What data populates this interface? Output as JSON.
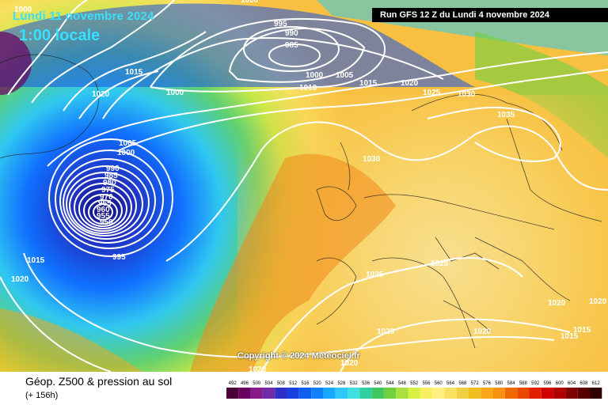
{
  "header": {
    "date": "Lundi 11 novembre 2024",
    "local_time": "1:00 locale",
    "run": "Run GFS 12 Z du Lundi 4 novembre 2024"
  },
  "footer": {
    "copyright": "Copyright © 2024 Meteociel.fr",
    "variable_title": "Géop. Z500 & pression au sol",
    "lead_time": "(+ 156h)"
  },
  "isobar_labels": [
    "1000",
    "995",
    "990",
    "985",
    "1000",
    "1005",
    "1010",
    "1015",
    "1020",
    "1025",
    "1030",
    "1015",
    "1020",
    "1000",
    "1005",
    "1000",
    "990",
    "985",
    "980",
    "975",
    "970",
    "965",
    "960",
    "955",
    "950",
    "995",
    "1015",
    "1020",
    "1030",
    "1035",
    "1025",
    "1020",
    "1020",
    "1015",
    "1015",
    "1020",
    "1020",
    "1000"
  ],
  "legend": {
    "ticks": [
      "492",
      "496",
      "500",
      "504",
      "508",
      "512",
      "516",
      "520",
      "524",
      "528",
      "532",
      "536",
      "540",
      "544",
      "548",
      "552",
      "556",
      "560",
      "564",
      "568",
      "572",
      "576",
      "580",
      "584",
      "588",
      "592",
      "596",
      "600",
      "604",
      "608",
      "612"
    ],
    "colors": [
      "#4a0038",
      "#6a0060",
      "#8a1a8a",
      "#6e2ca8",
      "#3030c8",
      "#1a40e0",
      "#1060f0",
      "#1080ff",
      "#18a8ff",
      "#30c8f8",
      "#40e0e0",
      "#30d0a0",
      "#40c860",
      "#70d040",
      "#a8e040",
      "#d8f040",
      "#f8f060",
      "#fff080",
      "#f8e060",
      "#f0d040",
      "#f0c020",
      "#f8a818",
      "#f89010",
      "#f06800",
      "#e84800",
      "#e02000",
      "#d00000",
      "#b00000",
      "#800000",
      "#580000",
      "#300000"
    ]
  }
}
